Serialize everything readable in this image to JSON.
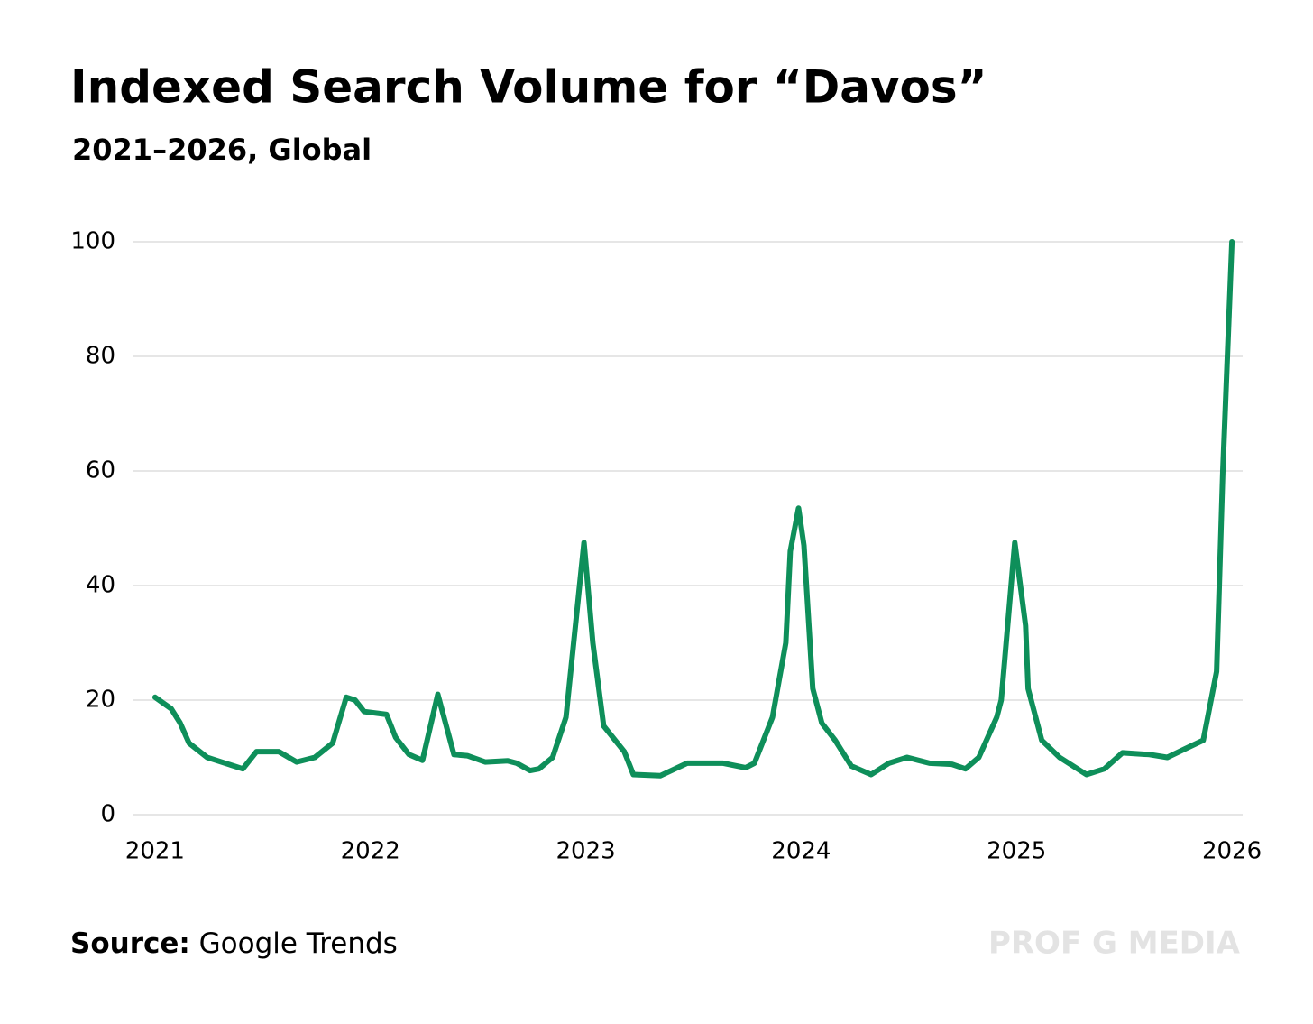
{
  "chart_data": {
    "type": "line",
    "title": "Indexed Search Volume for “Davos”",
    "subtitle": "2021–2026, Global",
    "source_label": "Source:",
    "source_text": "Google Trends",
    "watermark": "PROF G MEDIA",
    "x": [
      2021.0,
      2021.075,
      2021.117,
      2021.158,
      2021.242,
      2021.408,
      2021.471,
      2021.575,
      2021.658,
      2021.742,
      2021.825,
      2021.888,
      2021.929,
      2021.971,
      2022.075,
      2022.117,
      2022.179,
      2022.242,
      2022.313,
      2022.388,
      2022.45,
      2022.533,
      2022.638,
      2022.679,
      2022.742,
      2022.783,
      2022.846,
      2022.908,
      2022.992,
      2023.033,
      2023.083,
      2023.179,
      2023.221,
      2023.346,
      2023.471,
      2023.638,
      2023.742,
      2023.783,
      2023.867,
      2023.929,
      2023.95,
      2023.988,
      2024.013,
      2024.054,
      2024.096,
      2024.158,
      2024.233,
      2024.325,
      2024.408,
      2024.492,
      2024.596,
      2024.7,
      2024.763,
      2024.825,
      2024.908,
      2024.929,
      2024.992,
      2025.042,
      2025.054,
      2025.117,
      2025.2,
      2025.325,
      2025.408,
      2025.492,
      2025.617,
      2025.7,
      2025.783,
      2025.867,
      2025.929,
      2025.958,
      2026.0
    ],
    "series": [
      {
        "name": "Davos",
        "color": "#0e8f5a",
        "values": [
          20.5,
          18.5,
          16,
          12.5,
          10,
          8,
          11,
          11,
          9.2,
          10,
          12.5,
          20.5,
          20,
          18,
          17.5,
          13.5,
          10.5,
          9.5,
          21,
          10.5,
          10.3,
          9.2,
          9.4,
          9,
          7.7,
          8,
          10,
          17,
          47.5,
          30,
          15.5,
          11,
          7,
          6.8,
          9,
          9,
          8.2,
          9,
          17,
          30,
          46,
          53.5,
          47,
          22,
          16,
          13,
          8.5,
          7,
          9,
          10,
          9,
          8.8,
          8,
          10,
          17,
          20,
          47.5,
          33,
          22,
          13,
          10,
          7,
          8,
          10.8,
          10.5,
          10,
          11.5,
          13,
          25,
          60,
          100
        ]
      }
    ],
    "xlim": [
      2020.9,
      2026.05
    ],
    "xticks": [
      2021,
      2022,
      2023,
      2024,
      2025,
      2026
    ],
    "ylim": [
      0,
      100
    ],
    "yticks": [
      0,
      20,
      40,
      60,
      80,
      100
    ],
    "grid": true
  }
}
